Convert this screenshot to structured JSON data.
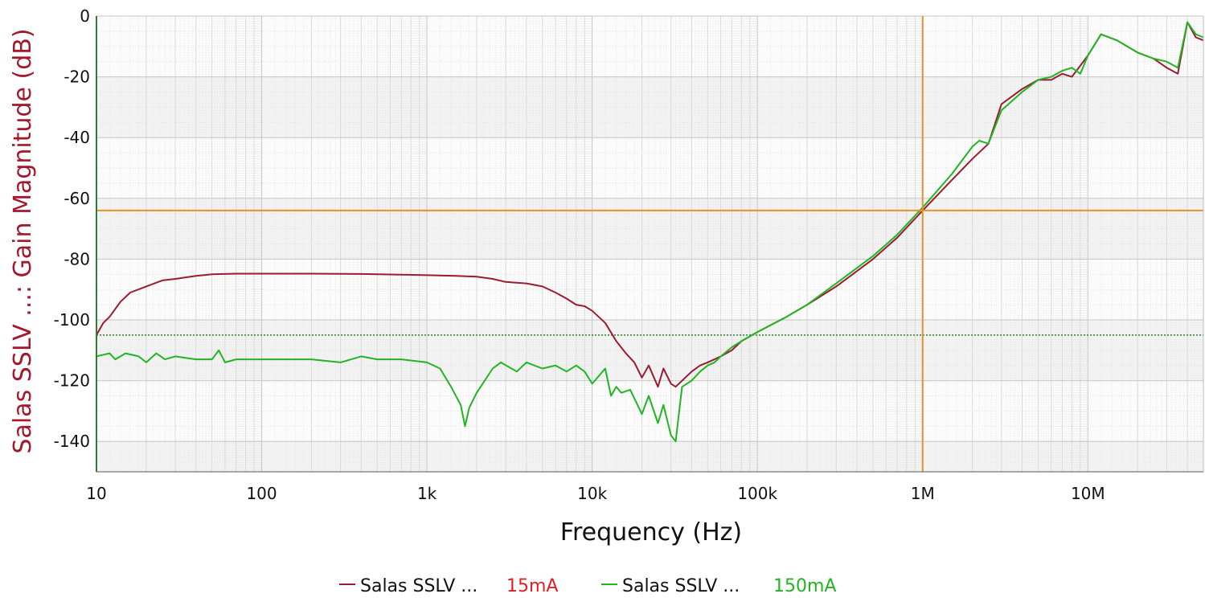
{
  "chart_data": {
    "type": "line",
    "xlabel": "Frequency (Hz)",
    "ylabel": "Salas SSLV ...: Gain Magnitude (dB)",
    "xscale": "log",
    "xlim": [
      10,
      50000000
    ],
    "ylim": [
      -150,
      0
    ],
    "x_ticks": [
      {
        "value": 10,
        "label": "10"
      },
      {
        "value": 100,
        "label": "100"
      },
      {
        "value": 1000,
        "label": "1k"
      },
      {
        "value": 10000,
        "label": "10k"
      },
      {
        "value": 100000,
        "label": "100k"
      },
      {
        "value": 1000000,
        "label": "1M"
      },
      {
        "value": 10000000,
        "label": "10M"
      }
    ],
    "y_ticks": [
      0,
      -20,
      -40,
      -60,
      -80,
      -100,
      -120,
      -140
    ],
    "grid": true,
    "legend_position": "bottom",
    "cursor": {
      "x": 1000000,
      "y": -64,
      "color": "#e8902a"
    },
    "reference_line": {
      "y": -105,
      "color": "#2e7d32",
      "style": "dotted"
    },
    "series": [
      {
        "name": "Salas SSLV ...",
        "tag": "15mA",
        "color": "#9b1b30",
        "tag_color": "#e02020",
        "points": [
          [
            10,
            -105
          ],
          [
            11,
            -101
          ],
          [
            12,
            -99
          ],
          [
            14,
            -94
          ],
          [
            16,
            -91
          ],
          [
            20,
            -89
          ],
          [
            25,
            -87
          ],
          [
            30,
            -86.5
          ],
          [
            40,
            -85.5
          ],
          [
            50,
            -85
          ],
          [
            70,
            -84.8
          ],
          [
            100,
            -84.8
          ],
          [
            200,
            -84.8
          ],
          [
            400,
            -84.9
          ],
          [
            700,
            -85.1
          ],
          [
            1000,
            -85.3
          ],
          [
            1500,
            -85.5
          ],
          [
            2000,
            -85.8
          ],
          [
            2500,
            -86.5
          ],
          [
            3000,
            -87.5
          ],
          [
            4000,
            -88
          ],
          [
            5000,
            -89
          ],
          [
            6000,
            -91
          ],
          [
            7000,
            -93
          ],
          [
            8000,
            -95
          ],
          [
            9000,
            -95.5
          ],
          [
            10000,
            -97
          ],
          [
            12000,
            -101
          ],
          [
            14000,
            -107
          ],
          [
            16000,
            -111
          ],
          [
            18000,
            -114
          ],
          [
            20000,
            -119
          ],
          [
            22000,
            -115
          ],
          [
            25000,
            -122
          ],
          [
            27000,
            -116
          ],
          [
            30000,
            -121
          ],
          [
            32000,
            -122
          ],
          [
            35000,
            -120
          ],
          [
            40000,
            -117
          ],
          [
            45000,
            -115
          ],
          [
            50000,
            -114
          ],
          [
            55000,
            -113
          ],
          [
            60000,
            -112
          ],
          [
            70000,
            -110
          ],
          [
            80000,
            -107
          ],
          [
            100000,
            -104
          ],
          [
            150000,
            -99
          ],
          [
            200000,
            -95
          ],
          [
            300000,
            -89
          ],
          [
            500000,
            -80
          ],
          [
            700000,
            -73
          ],
          [
            1000000,
            -64
          ],
          [
            1500000,
            -54
          ],
          [
            2000000,
            -47
          ],
          [
            2500000,
            -42
          ],
          [
            3000000,
            -29
          ],
          [
            4000000,
            -24
          ],
          [
            5000000,
            -21
          ],
          [
            6000000,
            -21
          ],
          [
            7000000,
            -19
          ],
          [
            8000000,
            -20
          ],
          [
            10000000,
            -13
          ],
          [
            12000000,
            -6
          ],
          [
            15000000,
            -8
          ],
          [
            20000000,
            -12
          ],
          [
            25000000,
            -14
          ],
          [
            30000000,
            -17
          ],
          [
            35000000,
            -19
          ],
          [
            40000000,
            -2
          ],
          [
            45000000,
            -7
          ],
          [
            50000000,
            -8
          ]
        ]
      },
      {
        "name": "Salas SSLV ...",
        "tag": "150mA",
        "color": "#22b522",
        "tag_color": "#22b522",
        "points": [
          [
            10,
            -112
          ],
          [
            12,
            -111
          ],
          [
            13,
            -113
          ],
          [
            15,
            -111
          ],
          [
            18,
            -112
          ],
          [
            20,
            -114
          ],
          [
            23,
            -111
          ],
          [
            26,
            -113
          ],
          [
            30,
            -112
          ],
          [
            40,
            -113
          ],
          [
            50,
            -113
          ],
          [
            55,
            -110
          ],
          [
            60,
            -114
          ],
          [
            70,
            -113
          ],
          [
            100,
            -113
          ],
          [
            200,
            -113
          ],
          [
            300,
            -114
          ],
          [
            400,
            -112
          ],
          [
            500,
            -113
          ],
          [
            700,
            -113
          ],
          [
            1000,
            -114
          ],
          [
            1200,
            -116
          ],
          [
            1400,
            -122
          ],
          [
            1600,
            -128
          ],
          [
            1700,
            -135
          ],
          [
            1800,
            -129
          ],
          [
            2000,
            -124
          ],
          [
            2500,
            -116
          ],
          [
            2800,
            -114
          ],
          [
            3500,
            -117
          ],
          [
            4000,
            -114
          ],
          [
            5000,
            -116
          ],
          [
            6000,
            -115
          ],
          [
            7000,
            -117
          ],
          [
            8000,
            -115
          ],
          [
            9000,
            -117
          ],
          [
            10000,
            -121
          ],
          [
            12000,
            -116
          ],
          [
            13000,
            -125
          ],
          [
            14000,
            -122
          ],
          [
            15000,
            -124
          ],
          [
            17000,
            -123
          ],
          [
            20000,
            -131
          ],
          [
            22000,
            -125
          ],
          [
            25000,
            -134
          ],
          [
            27000,
            -128
          ],
          [
            30000,
            -138
          ],
          [
            32000,
            -140
          ],
          [
            35000,
            -122
          ],
          [
            40000,
            -120
          ],
          [
            45000,
            -117
          ],
          [
            50000,
            -115
          ],
          [
            55000,
            -114
          ],
          [
            60000,
            -112
          ],
          [
            70000,
            -109
          ],
          [
            80000,
            -107
          ],
          [
            100000,
            -104
          ],
          [
            150000,
            -99
          ],
          [
            200000,
            -95
          ],
          [
            300000,
            -88
          ],
          [
            500000,
            -79
          ],
          [
            700000,
            -72
          ],
          [
            1000000,
            -63
          ],
          [
            1500000,
            -52
          ],
          [
            2000000,
            -43
          ],
          [
            2200000,
            -41
          ],
          [
            2500000,
            -42
          ],
          [
            3000000,
            -31
          ],
          [
            4000000,
            -25
          ],
          [
            5000000,
            -21
          ],
          [
            6000000,
            -20
          ],
          [
            7000000,
            -18
          ],
          [
            8000000,
            -17
          ],
          [
            9000000,
            -19
          ],
          [
            10000000,
            -13
          ],
          [
            12000000,
            -6
          ],
          [
            15000000,
            -8
          ],
          [
            20000000,
            -12
          ],
          [
            25000000,
            -14
          ],
          [
            30000000,
            -15
          ],
          [
            35000000,
            -17
          ],
          [
            40000000,
            -2
          ],
          [
            45000000,
            -6
          ],
          [
            50000000,
            -7
          ]
        ]
      }
    ]
  }
}
